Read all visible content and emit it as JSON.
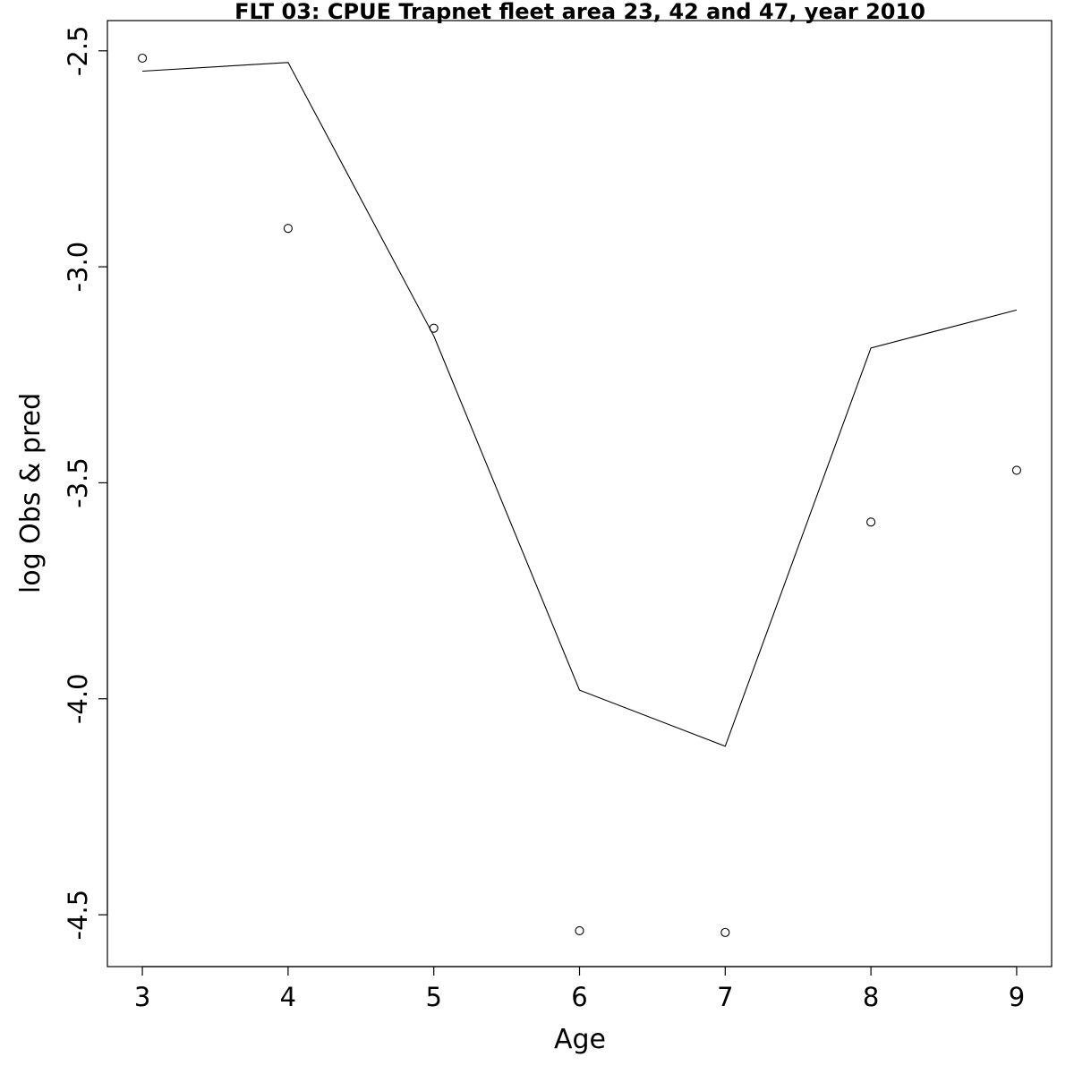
{
  "chart_data": {
    "type": "line",
    "title": "FLT 03: CPUE Trapnet fleet area 23, 42 and 47, year 2010",
    "xlabel": "Age",
    "ylabel": "log Obs & pred",
    "x": [
      3,
      4,
      5,
      6,
      7,
      8,
      9
    ],
    "xlim": [
      2.76,
      9.24
    ],
    "ylim": [
      -4.62,
      -2.43
    ],
    "x_ticks": [
      3,
      4,
      5,
      6,
      7,
      8,
      9
    ],
    "x_tick_labels": [
      "3",
      "4",
      "5",
      "6",
      "7",
      "8",
      "9"
    ],
    "y_ticks": [
      -4.5,
      -4.0,
      -3.5,
      -3.0,
      -2.5
    ],
    "y_tick_labels": [
      "-4.5",
      "-4.0",
      "-3.5",
      "-3.0",
      "-2.5"
    ],
    "series": [
      {
        "style": "points",
        "marker": "open-circle",
        "values": [
          -2.517,
          -2.911,
          -3.142,
          -4.537,
          -4.541,
          -3.591,
          -3.471
        ]
      },
      {
        "style": "line",
        "values": [
          -2.547,
          -2.527,
          -3.16,
          -3.98,
          -4.11,
          -3.188,
          -3.1
        ]
      }
    ],
    "grid": false,
    "legend": "none"
  }
}
